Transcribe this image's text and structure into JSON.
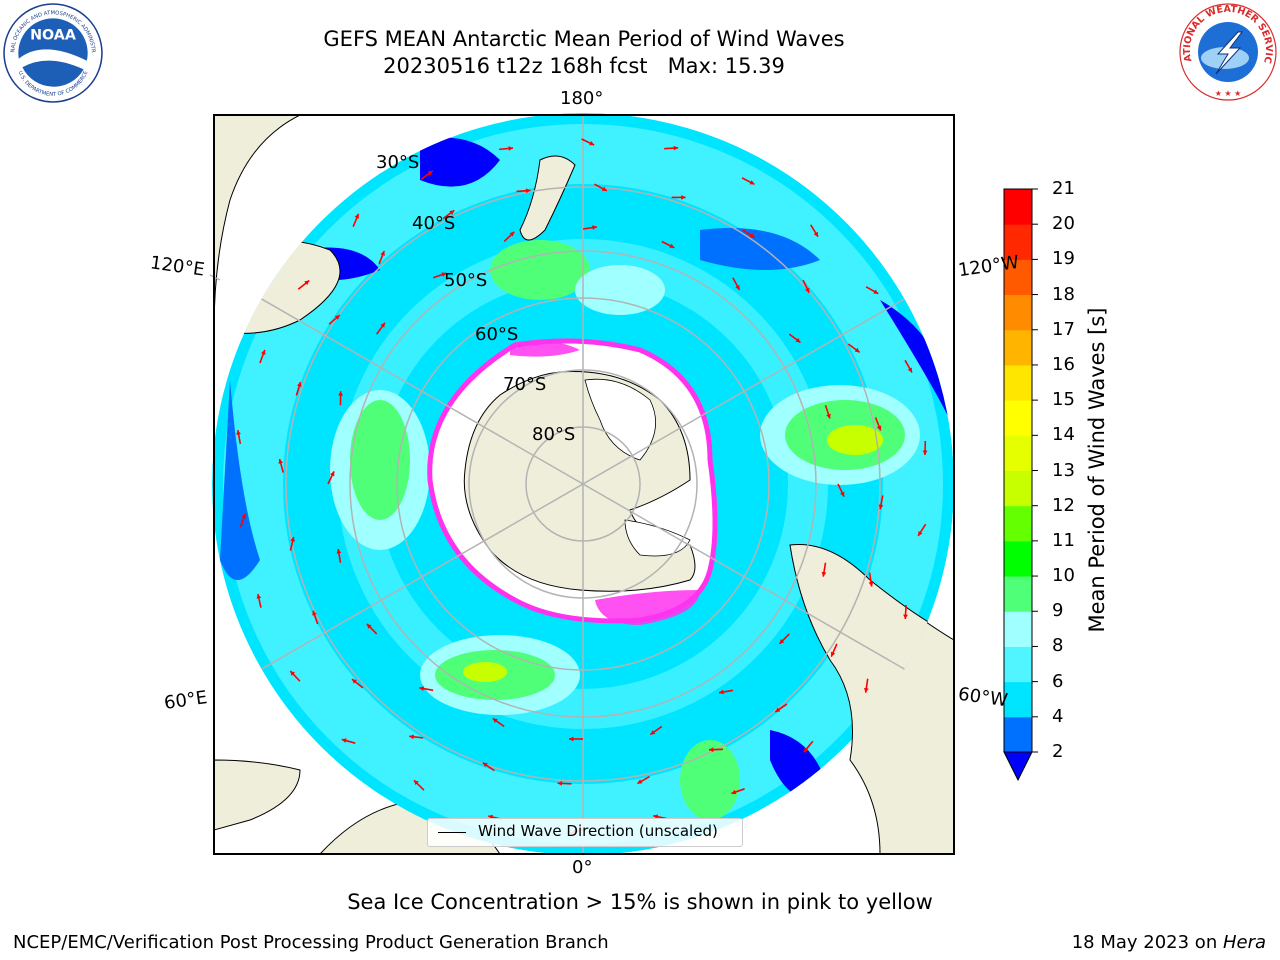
{
  "header": {
    "title_line1": "GEFS MEAN Antarctic Mean Period of Wind Waves",
    "title_line2": "20230516 t12z 168h fcst   Max: 15.39"
  },
  "logos": {
    "noaa_text": "NOAA",
    "noaa_ring_top": "NATIONAL OCEANIC AND ATMOSPHERIC ADMINISTRATION",
    "noaa_ring_bottom": "U.S. DEPARTMENT OF COMMERCE",
    "nws_ring": "NATIONAL WEATHER SERVICE"
  },
  "map": {
    "projection": "south-polar-stereographic",
    "lon_labels": {
      "top": "180°",
      "bottom": "0°",
      "upper_left": "120°E",
      "upper_right": "120°W",
      "lower_left": "60°E",
      "lower_right": "60°W"
    },
    "lat_labels": [
      "30°S",
      "40°S",
      "50°S",
      "60°S",
      "70°S",
      "80°S"
    ],
    "colors": {
      "land": "#efeedb",
      "ice": "#ffffff",
      "ice_edge": "#ff33ee",
      "arrow": "#ff0000",
      "grid": "#b3b3b3"
    }
  },
  "colorbar": {
    "label": "Mean Period of Wind Waves [s]",
    "ticks": [
      "2",
      "4",
      "6",
      "8",
      "9",
      "10",
      "11",
      "12",
      "13",
      "14",
      "15",
      "16",
      "17",
      "18",
      "19",
      "20",
      "21"
    ],
    "colors": [
      "#0070ff",
      "#00e5ff",
      "#50f5ff",
      "#a0ffff",
      "#50ff78",
      "#00ff00",
      "#64ff00",
      "#c8ff00",
      "#e6ff00",
      "#ffff00",
      "#ffe600",
      "#ffb400",
      "#ff8c00",
      "#ff5a00",
      "#ff2800",
      "#ff0000"
    ],
    "under_color": "#0000ff"
  },
  "legend": {
    "label": "Wind Wave Direction (unscaled)"
  },
  "notes": {
    "sea_ice": "Sea Ice Concentration > 15% is shown in pink to yellow"
  },
  "footer": {
    "left": "NCEP/EMC/Verification Post Processing Product Generation Branch",
    "right_prefix": "18 May 2023 on ",
    "right_machine": "Hera"
  }
}
